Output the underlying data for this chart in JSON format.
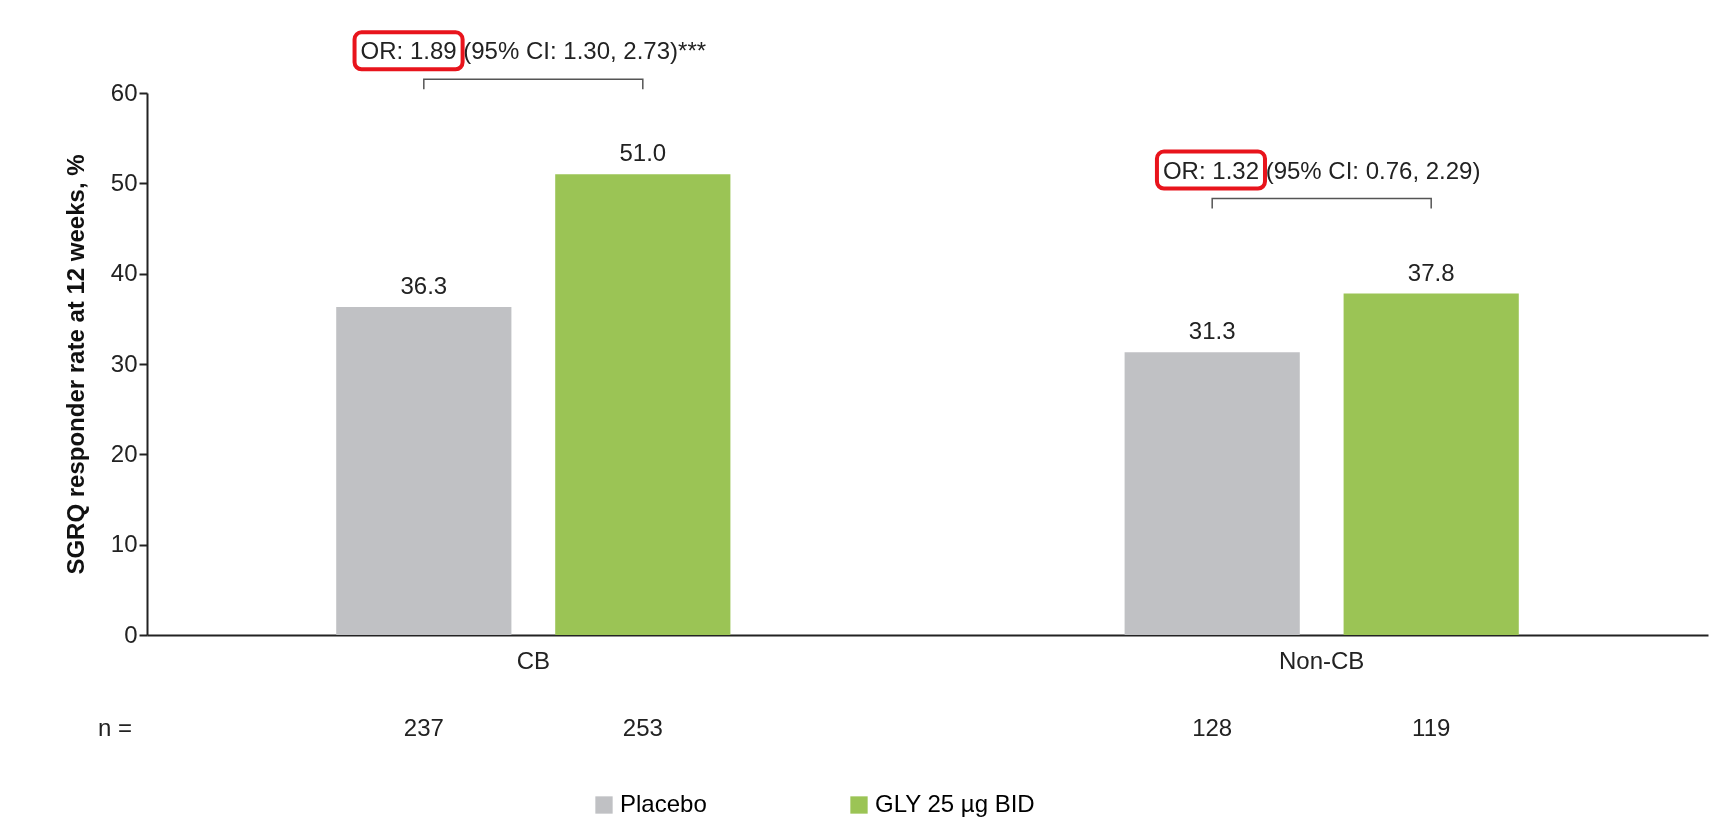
{
  "chart_data": {
    "type": "bar",
    "ylabel": "SGRQ responder rate at 12 weeks, %",
    "categories": [
      "CB",
      "Non-CB"
    ],
    "series": [
      {
        "name": "Placebo",
        "color": "#c0c1c4",
        "values": [
          36.3,
          31.3
        ]
      },
      {
        "name": "GLY 25 µg BID",
        "color": "#9bc455",
        "values": [
          51.0,
          37.8
        ]
      }
    ],
    "value_labels": [
      [
        "36.3",
        "31.3"
      ],
      [
        "51.0",
        "37.8"
      ]
    ],
    "ylim": [
      0,
      60
    ],
    "yticks": [
      0,
      10,
      20,
      30,
      40,
      50,
      60
    ],
    "grid": false,
    "legend": "bottom",
    "annotations": [
      "OR: 1.89 (95% CI: 1.30, 2.73)***",
      "OR: 1.32 (95% CI: 0.76, 2.29)",
      "n =",
      "237",
      "253",
      "128",
      "119"
    ]
  }
}
